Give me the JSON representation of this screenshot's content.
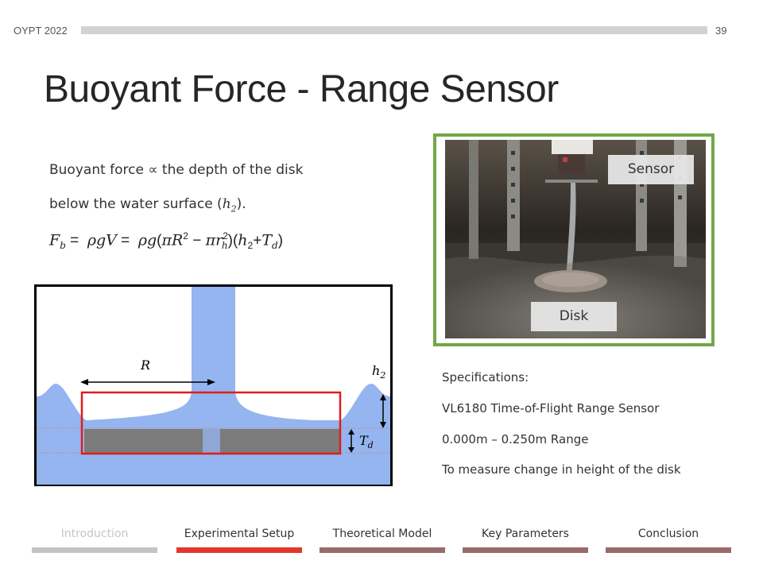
{
  "header": {
    "conference": "OYPT 2022",
    "page_number": "39"
  },
  "title": "Buoyant Force - Range Sensor",
  "body": {
    "line1": "Buoyant force ∝ the depth of the disk",
    "line2_prefix": "below the water surface (",
    "line2_var": "h",
    "line2_sub": "2",
    "line2_suffix": ")."
  },
  "diagram": {
    "label_R": "R",
    "label_h": "h",
    "label_h_sub": "2",
    "label_T": "T",
    "label_T_sub": "d"
  },
  "photo": {
    "sensor_label": "Sensor",
    "disk_label": "Disk"
  },
  "specs": {
    "heading": "Specifications:",
    "line1": "VL6180 Time-of-Flight Range Sensor",
    "line2": "0.000m – 0.250m Range",
    "line3": "To measure change in height of the disk"
  },
  "nav": {
    "items": [
      {
        "label": "Introduction",
        "state": "inactive"
      },
      {
        "label": "Experimental Setup",
        "state": "active"
      },
      {
        "label": "Theoretical Model",
        "state": "normal"
      },
      {
        "label": "Key Parameters",
        "state": "normal"
      },
      {
        "label": "Conclusion",
        "state": "normal"
      }
    ],
    "colors": {
      "inactive_text": "#c6c6c6",
      "inactive_bar": "#c4c4c4",
      "active_bar": "#e2382c",
      "normal_bar": "#9b6b6b"
    }
  },
  "colors": {
    "photo_border": "#70a848",
    "water": "#94b5ef",
    "disk": "#7b7b7b",
    "highlight_box": "#e01c1c"
  }
}
